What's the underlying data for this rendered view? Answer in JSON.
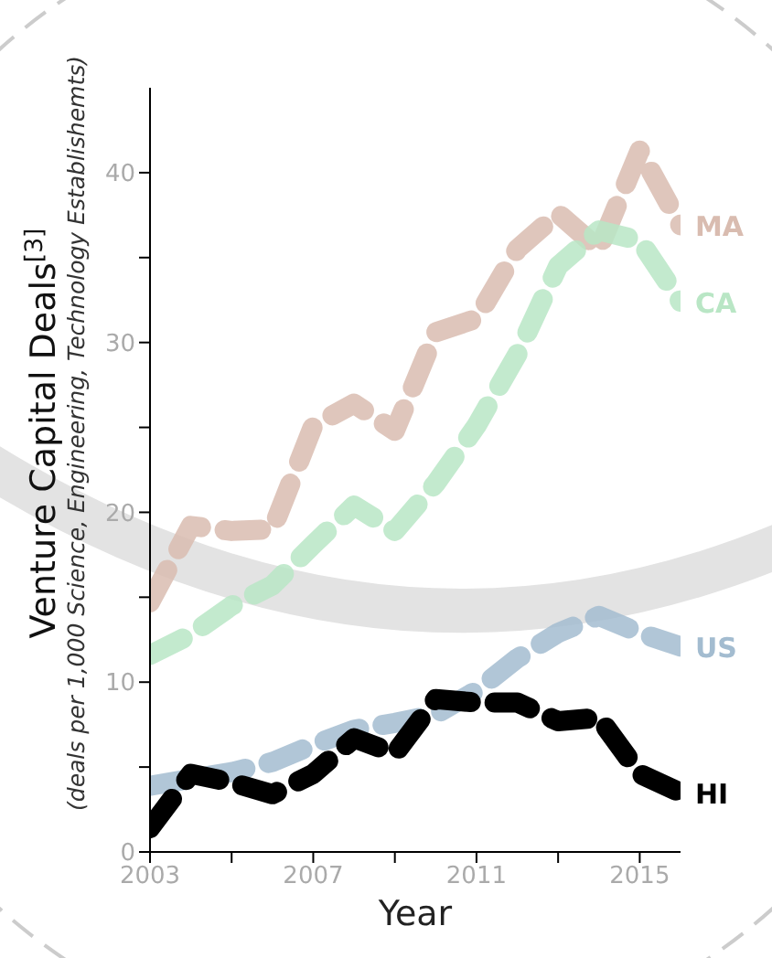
{
  "chart_data": {
    "type": "line",
    "xlabel": "Year",
    "ylabel": "Venture Capital Deals$^{[3]}$",
    "annotations": [
      "(deals per 1,000 Science, Engineering, Technology Establishemts)"
    ],
    "x": [
      2003,
      2004,
      2005,
      2006,
      2007,
      2008,
      2009,
      2010,
      2011,
      2012,
      2013,
      2014,
      2015,
      2016
    ],
    "series": [
      {
        "name": "MA",
        "color": "#d9bcb0",
        "values": [
          14.7,
          19.2,
          18.9,
          19.0,
          25.1,
          26.4,
          24.8,
          30.6,
          31.4,
          35.5,
          37.6,
          35.5,
          41.3,
          36.9
        ]
      },
      {
        "name": "CA",
        "color": "#b9e6c5",
        "values": [
          11.6,
          12.8,
          14.5,
          15.7,
          18.1,
          20.4,
          18.9,
          21.7,
          25.1,
          29.3,
          34.5,
          36.6,
          36.0,
          32.4
        ]
      },
      {
        "name": "US",
        "color": "#a3bcd0",
        "values": [
          3.9,
          4.3,
          4.7,
          5.3,
          6.3,
          7.2,
          7.6,
          8.1,
          9.5,
          11.4,
          12.9,
          13.9,
          12.9,
          12.1
        ]
      },
      {
        "name": "HI",
        "color": "#000000",
        "values": [
          1.4,
          4.6,
          4.1,
          3.4,
          4.6,
          6.7,
          5.8,
          9.0,
          8.8,
          8.8,
          7.7,
          7.9,
          4.6,
          3.5
        ]
      }
    ],
    "xlim": [
      2003,
      2016
    ],
    "xticks": [
      2003,
      {
        "value": 2005,
        "label": null
      },
      2007,
      {
        "value": 2009,
        "label": null
      },
      2011,
      {
        "value": 2013,
        "label": null
      },
      2015
    ],
    "ylim": [
      0,
      45
    ],
    "yticks": [
      0,
      {
        "value": 5,
        "label": null
      },
      10,
      {
        "value": 15,
        "label": null
      },
      20,
      {
        "value": 25,
        "label": null
      },
      30,
      {
        "value": 35,
        "label": null
      },
      40
    ],
    "grid": false,
    "legend": false,
    "marker": "none",
    "line_style": "dashed"
  }
}
